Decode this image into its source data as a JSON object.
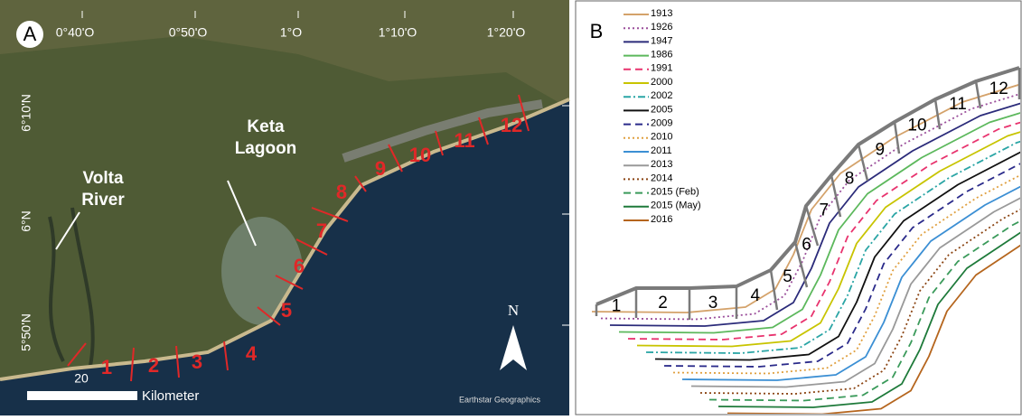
{
  "panel_a": {
    "label": "A",
    "longitudes": [
      "0°40'O",
      "0°50'O",
      "1°O",
      "1°10'O",
      "1°20'O"
    ],
    "latitudes": [
      "6°10'N",
      "6°N",
      "5°50'N"
    ],
    "volta_river": [
      "Volta",
      "River"
    ],
    "keta_lagoon": [
      "Keta",
      "Lagoon"
    ],
    "segments": [
      "1",
      "2",
      "3",
      "4",
      "5",
      "6",
      "7",
      "8",
      "9",
      "10",
      "11",
      "12"
    ],
    "scale_label": "20",
    "scale_unit": "Kilometer",
    "north": "N",
    "credit": "Earthstar Geographics"
  },
  "panel_b": {
    "label": "B",
    "legend": [
      {
        "label": "1913",
        "color": "#d4a26a",
        "style": "solid"
      },
      {
        "label": "1926",
        "color": "#9b4f9b",
        "style": "dotted"
      },
      {
        "label": "1947",
        "color": "#2b2b7a",
        "style": "solid"
      },
      {
        "label": "1986",
        "color": "#5cb85c",
        "style": "solid"
      },
      {
        "label": "1991",
        "color": "#e8336e",
        "style": "dashed"
      },
      {
        "label": "2000",
        "color": "#c8c400",
        "style": "solid"
      },
      {
        "label": "2002",
        "color": "#2aa5a5",
        "style": "dashdot"
      },
      {
        "label": "2005",
        "color": "#111111",
        "style": "solid"
      },
      {
        "label": "2009",
        "color": "#2a2a8a",
        "style": "dashed"
      },
      {
        "label": "2010",
        "color": "#e0a040",
        "style": "dotted"
      },
      {
        "label": "2011",
        "color": "#3b8fd4",
        "style": "solid"
      },
      {
        "label": "2013",
        "color": "#999999",
        "style": "solid"
      },
      {
        "label": "2014",
        "color": "#8b4513",
        "style": "dotted"
      },
      {
        "label": "2015 (Feb)",
        "color": "#3a9a5a",
        "style": "dashed"
      },
      {
        "label": "2015 (May)",
        "color": "#1e7a3a",
        "style": "solid"
      },
      {
        "label": "2016",
        "color": "#b5651d",
        "style": "solid"
      }
    ],
    "segments": [
      "1",
      "2",
      "3",
      "4",
      "5",
      "6",
      "7",
      "8",
      "9",
      "10",
      "11",
      "12"
    ]
  }
}
